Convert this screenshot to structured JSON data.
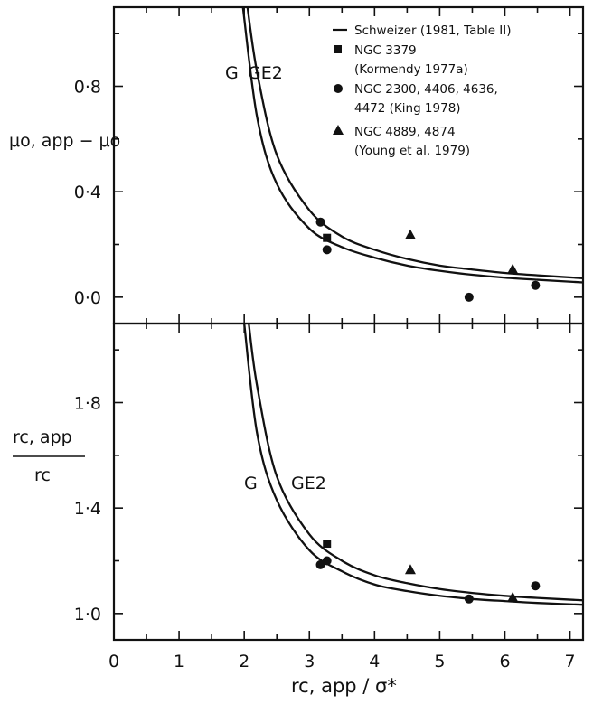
{
  "chart_data": [
    {
      "type": "scatter",
      "panel": "top",
      "ylabel": "μo, app − μo",
      "ylim": [
        -0.1,
        1.1
      ],
      "yticks": [
        0.0,
        0.4,
        0.8
      ],
      "ytick_labels": [
        "0·0",
        "0·4",
        "0·8"
      ],
      "xlim": [
        0,
        7.2
      ],
      "curve_labels": [
        "G",
        "GE2"
      ],
      "series": [
        {
          "name": "Schweizer (1981, Table II)",
          "kind": "line",
          "curve": "G",
          "x": [
            1.98,
            2.2,
            2.5,
            3.0,
            3.5,
            4.0,
            4.5,
            5.0,
            5.5,
            6.0,
            6.5,
            7.2
          ],
          "y": [
            1.1,
            0.68,
            0.43,
            0.26,
            0.19,
            0.15,
            0.12,
            0.1,
            0.085,
            0.074,
            0.066,
            0.056
          ]
        },
        {
          "name": "Schweizer (1981, Table II)",
          "kind": "line",
          "curve": "GE2",
          "x": [
            2.05,
            2.2,
            2.5,
            3.0,
            3.5,
            4.0,
            4.5,
            5.0,
            5.5,
            6.0,
            6.5,
            7.2
          ],
          "y": [
            1.1,
            0.85,
            0.54,
            0.33,
            0.23,
            0.18,
            0.145,
            0.12,
            0.105,
            0.092,
            0.083,
            0.072
          ]
        },
        {
          "name": "NGC 3379 (Kormendy 1977a)",
          "marker": "square",
          "x": [
            3.27
          ],
          "y": [
            0.225
          ]
        },
        {
          "name": "NGC 2300, 4406, 4636, 4472 (King 1978)",
          "marker": "circle",
          "x": [
            3.17,
            3.27,
            5.45,
            6.47
          ],
          "y": [
            0.285,
            0.18,
            0.0,
            0.045
          ]
        },
        {
          "name": "NGC 4889, 4874 (Young et al. 1979)",
          "marker": "triangle",
          "x": [
            4.55,
            6.12
          ],
          "y": [
            0.235,
            0.105
          ]
        }
      ]
    },
    {
      "type": "scatter",
      "panel": "bottom",
      "ylabel_num": "rc, app",
      "ylabel_den": "rc",
      "ylim": [
        0.9,
        2.1
      ],
      "yticks": [
        1.0,
        1.4,
        1.8
      ],
      "ytick_labels": [
        "1·0",
        "1·4",
        "1·8"
      ],
      "xlim": [
        0,
        7.2
      ],
      "xticks": [
        0,
        1,
        2,
        3,
        4,
        5,
        6,
        7
      ],
      "xtick_labels": [
        "0",
        "1",
        "2",
        "3",
        "4",
        "5",
        "6",
        "7"
      ],
      "xlabel": "rc, app / σ*",
      "curve_labels": [
        "G",
        "GE2"
      ],
      "series": [
        {
          "name": "Schweizer (1981, Table II)",
          "kind": "line",
          "curve": "G",
          "x": [
            2.0,
            2.2,
            2.5,
            3.0,
            3.5,
            4.0,
            4.5,
            5.0,
            5.5,
            6.0,
            6.5,
            7.2
          ],
          "y": [
            2.1,
            1.68,
            1.43,
            1.24,
            1.16,
            1.11,
            1.085,
            1.067,
            1.055,
            1.047,
            1.04,
            1.033
          ]
        },
        {
          "name": "Schweizer (1981, Table II)",
          "kind": "line",
          "curve": "GE2",
          "x": [
            2.07,
            2.2,
            2.5,
            3.0,
            3.5,
            4.0,
            4.5,
            5.0,
            5.5,
            6.0,
            6.5,
            7.2
          ],
          "y": [
            2.1,
            1.86,
            1.52,
            1.3,
            1.2,
            1.145,
            1.115,
            1.093,
            1.078,
            1.067,
            1.059,
            1.05
          ]
        },
        {
          "name": "NGC 3379 (Kormendy 1977a)",
          "marker": "square",
          "x": [
            3.27
          ],
          "y": [
            1.265
          ]
        },
        {
          "name": "NGC 2300, 4406, 4636, 4472 (King 1978)",
          "marker": "circle",
          "x": [
            3.17,
            3.27,
            5.45,
            6.47
          ],
          "y": [
            1.185,
            1.2,
            1.055,
            1.105
          ]
        },
        {
          "name": "NGC 4889, 4874 (Young et al. 1979)",
          "marker": "triangle",
          "x": [
            4.55,
            6.12
          ],
          "y": [
            1.165,
            1.06
          ]
        }
      ]
    }
  ],
  "legend": {
    "placement": "top-right",
    "entries": [
      {
        "marker": "line",
        "lines": [
          "Schweizer (1981, Table II)"
        ]
      },
      {
        "marker": "square",
        "lines": [
          "NGC 3379",
          "(Kormendy 1977a)"
        ]
      },
      {
        "marker": "circle",
        "lines": [
          "NGC 2300, 4406, 4636,",
          "4472 (King 1978)"
        ]
      },
      {
        "marker": "triangle",
        "lines": [
          "NGC 4889, 4874",
          "(Young et al. 1979)"
        ]
      }
    ]
  }
}
